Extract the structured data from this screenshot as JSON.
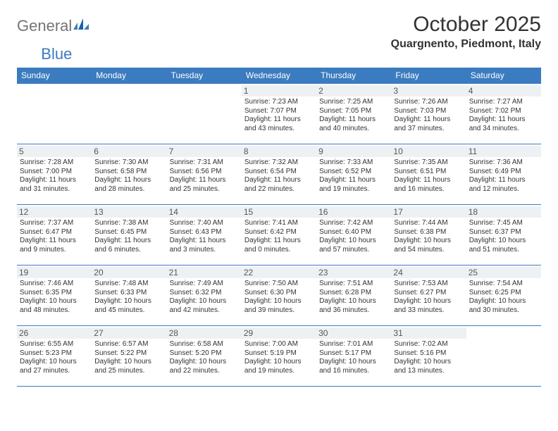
{
  "logo": {
    "text1": "General",
    "text2": "Blue"
  },
  "title": "October 2025",
  "location": "Quargnento, Piedmont, Italy",
  "colors": {
    "accent": "#3b7bbf",
    "header_text": "#ffffff",
    "daynum_bg": "#eef1f4",
    "text": "#333333",
    "logo_gray": "#757575"
  },
  "day_headers": [
    "Sunday",
    "Monday",
    "Tuesday",
    "Wednesday",
    "Thursday",
    "Friday",
    "Saturday"
  ],
  "weeks": [
    [
      {
        "n": "",
        "sr": "",
        "ss": "",
        "dl": ""
      },
      {
        "n": "",
        "sr": "",
        "ss": "",
        "dl": ""
      },
      {
        "n": "",
        "sr": "",
        "ss": "",
        "dl": ""
      },
      {
        "n": "1",
        "sr": "Sunrise: 7:23 AM",
        "ss": "Sunset: 7:07 PM",
        "dl": "Daylight: 11 hours and 43 minutes."
      },
      {
        "n": "2",
        "sr": "Sunrise: 7:25 AM",
        "ss": "Sunset: 7:05 PM",
        "dl": "Daylight: 11 hours and 40 minutes."
      },
      {
        "n": "3",
        "sr": "Sunrise: 7:26 AM",
        "ss": "Sunset: 7:03 PM",
        "dl": "Daylight: 11 hours and 37 minutes."
      },
      {
        "n": "4",
        "sr": "Sunrise: 7:27 AM",
        "ss": "Sunset: 7:02 PM",
        "dl": "Daylight: 11 hours and 34 minutes."
      }
    ],
    [
      {
        "n": "5",
        "sr": "Sunrise: 7:28 AM",
        "ss": "Sunset: 7:00 PM",
        "dl": "Daylight: 11 hours and 31 minutes."
      },
      {
        "n": "6",
        "sr": "Sunrise: 7:30 AM",
        "ss": "Sunset: 6:58 PM",
        "dl": "Daylight: 11 hours and 28 minutes."
      },
      {
        "n": "7",
        "sr": "Sunrise: 7:31 AM",
        "ss": "Sunset: 6:56 PM",
        "dl": "Daylight: 11 hours and 25 minutes."
      },
      {
        "n": "8",
        "sr": "Sunrise: 7:32 AM",
        "ss": "Sunset: 6:54 PM",
        "dl": "Daylight: 11 hours and 22 minutes."
      },
      {
        "n": "9",
        "sr": "Sunrise: 7:33 AM",
        "ss": "Sunset: 6:52 PM",
        "dl": "Daylight: 11 hours and 19 minutes."
      },
      {
        "n": "10",
        "sr": "Sunrise: 7:35 AM",
        "ss": "Sunset: 6:51 PM",
        "dl": "Daylight: 11 hours and 16 minutes."
      },
      {
        "n": "11",
        "sr": "Sunrise: 7:36 AM",
        "ss": "Sunset: 6:49 PM",
        "dl": "Daylight: 11 hours and 12 minutes."
      }
    ],
    [
      {
        "n": "12",
        "sr": "Sunrise: 7:37 AM",
        "ss": "Sunset: 6:47 PM",
        "dl": "Daylight: 11 hours and 9 minutes."
      },
      {
        "n": "13",
        "sr": "Sunrise: 7:38 AM",
        "ss": "Sunset: 6:45 PM",
        "dl": "Daylight: 11 hours and 6 minutes."
      },
      {
        "n": "14",
        "sr": "Sunrise: 7:40 AM",
        "ss": "Sunset: 6:43 PM",
        "dl": "Daylight: 11 hours and 3 minutes."
      },
      {
        "n": "15",
        "sr": "Sunrise: 7:41 AM",
        "ss": "Sunset: 6:42 PM",
        "dl": "Daylight: 11 hours and 0 minutes."
      },
      {
        "n": "16",
        "sr": "Sunrise: 7:42 AM",
        "ss": "Sunset: 6:40 PM",
        "dl": "Daylight: 10 hours and 57 minutes."
      },
      {
        "n": "17",
        "sr": "Sunrise: 7:44 AM",
        "ss": "Sunset: 6:38 PM",
        "dl": "Daylight: 10 hours and 54 minutes."
      },
      {
        "n": "18",
        "sr": "Sunrise: 7:45 AM",
        "ss": "Sunset: 6:37 PM",
        "dl": "Daylight: 10 hours and 51 minutes."
      }
    ],
    [
      {
        "n": "19",
        "sr": "Sunrise: 7:46 AM",
        "ss": "Sunset: 6:35 PM",
        "dl": "Daylight: 10 hours and 48 minutes."
      },
      {
        "n": "20",
        "sr": "Sunrise: 7:48 AM",
        "ss": "Sunset: 6:33 PM",
        "dl": "Daylight: 10 hours and 45 minutes."
      },
      {
        "n": "21",
        "sr": "Sunrise: 7:49 AM",
        "ss": "Sunset: 6:32 PM",
        "dl": "Daylight: 10 hours and 42 minutes."
      },
      {
        "n": "22",
        "sr": "Sunrise: 7:50 AM",
        "ss": "Sunset: 6:30 PM",
        "dl": "Daylight: 10 hours and 39 minutes."
      },
      {
        "n": "23",
        "sr": "Sunrise: 7:51 AM",
        "ss": "Sunset: 6:28 PM",
        "dl": "Daylight: 10 hours and 36 minutes."
      },
      {
        "n": "24",
        "sr": "Sunrise: 7:53 AM",
        "ss": "Sunset: 6:27 PM",
        "dl": "Daylight: 10 hours and 33 minutes."
      },
      {
        "n": "25",
        "sr": "Sunrise: 7:54 AM",
        "ss": "Sunset: 6:25 PM",
        "dl": "Daylight: 10 hours and 30 minutes."
      }
    ],
    [
      {
        "n": "26",
        "sr": "Sunrise: 6:55 AM",
        "ss": "Sunset: 5:23 PM",
        "dl": "Daylight: 10 hours and 27 minutes."
      },
      {
        "n": "27",
        "sr": "Sunrise: 6:57 AM",
        "ss": "Sunset: 5:22 PM",
        "dl": "Daylight: 10 hours and 25 minutes."
      },
      {
        "n": "28",
        "sr": "Sunrise: 6:58 AM",
        "ss": "Sunset: 5:20 PM",
        "dl": "Daylight: 10 hours and 22 minutes."
      },
      {
        "n": "29",
        "sr": "Sunrise: 7:00 AM",
        "ss": "Sunset: 5:19 PM",
        "dl": "Daylight: 10 hours and 19 minutes."
      },
      {
        "n": "30",
        "sr": "Sunrise: 7:01 AM",
        "ss": "Sunset: 5:17 PM",
        "dl": "Daylight: 10 hours and 16 minutes."
      },
      {
        "n": "31",
        "sr": "Sunrise: 7:02 AM",
        "ss": "Sunset: 5:16 PM",
        "dl": "Daylight: 10 hours and 13 minutes."
      },
      {
        "n": "",
        "sr": "",
        "ss": "",
        "dl": ""
      }
    ]
  ]
}
